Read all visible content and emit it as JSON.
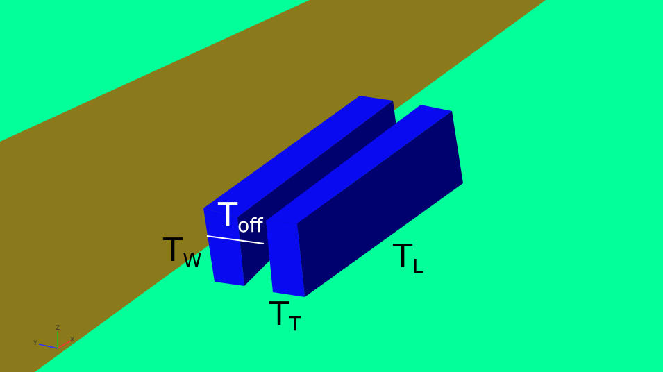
{
  "colors": {
    "background": "#02FF99",
    "road": "#8A7A1B",
    "block_light": "#0A0AF0",
    "block_dark": "#00006E",
    "label": "#000000",
    "offset_label": "#FFFFFF",
    "offset_line": "#FFFFFF"
  },
  "labels": {
    "width": {
      "main": "T",
      "sub": "W"
    },
    "offset": {
      "main": "T",
      "sub": "off"
    },
    "length": {
      "main": "T",
      "sub": "L"
    },
    "thickness": {
      "main": "T",
      "sub": "T"
    }
  },
  "axes": {
    "x": "X",
    "y": "Y",
    "z": "Z",
    "x_color": "#FF3030",
    "y_color": "#3030FF",
    "z_color": "#20C020"
  }
}
